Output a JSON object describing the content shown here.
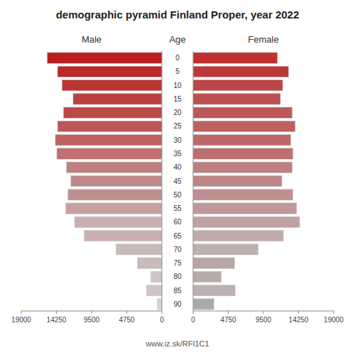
{
  "chart_data": {
    "type": "pyramid",
    "orientation": "horizontal",
    "title": "demographic pyramid Finland Proper, year 2022",
    "y_label": "Age",
    "annotations": [
      "www.iz.sk/RFI1C1"
    ],
    "categories": [
      "90",
      "85",
      "80",
      "75",
      "70",
      "65",
      "60",
      "55",
      "50",
      "45",
      "40",
      "35",
      "30",
      "25",
      "20",
      "15",
      "10",
      "5",
      "0"
    ],
    "series": [
      {
        "name": "Male",
        "values": [
          650,
          2100,
          1500,
          3300,
          6200,
          10500,
          11800,
          13000,
          12700,
          12300,
          12900,
          14200,
          14400,
          14100,
          13300,
          12000,
          13500,
          14100,
          15500
        ],
        "colors": [
          "#d8d0d0",
          "#cfc5c5",
          "#cfc5c5",
          "#c9bbbb",
          "#c9bbbb",
          "#c9b0b0",
          "#c9b0b0",
          "#c9a0a0",
          "#c09090",
          "#c08888",
          "#c08080",
          "#c07070",
          "#bc6060",
          "#bc5555",
          "#bc4848",
          "#bc4040",
          "#bb3535",
          "#bb2828",
          "#bb1e1e"
        ]
      },
      {
        "name": "Female",
        "values": [
          2800,
          5700,
          3800,
          5600,
          8800,
          12200,
          14400,
          14000,
          13500,
          12000,
          13400,
          13500,
          13200,
          13800,
          13400,
          11800,
          12100,
          12900,
          11400
        ],
        "colors": [
          "#aaaaaa",
          "#bcb0b0",
          "#b8abab",
          "#b8a5a5",
          "#bfb0b0",
          "#bfaaaa",
          "#c0a0a0",
          "#c09898",
          "#c09090",
          "#bc8585",
          "#bc8080",
          "#bc7070",
          "#bc6868",
          "#bc6060",
          "#bc5858",
          "#bc5050",
          "#bc4545",
          "#bc3838",
          "#c03030"
        ]
      }
    ],
    "xlim": [
      0,
      19000
    ],
    "xticks": [
      0,
      4750,
      9500,
      14250,
      19000
    ],
    "grid": false
  }
}
